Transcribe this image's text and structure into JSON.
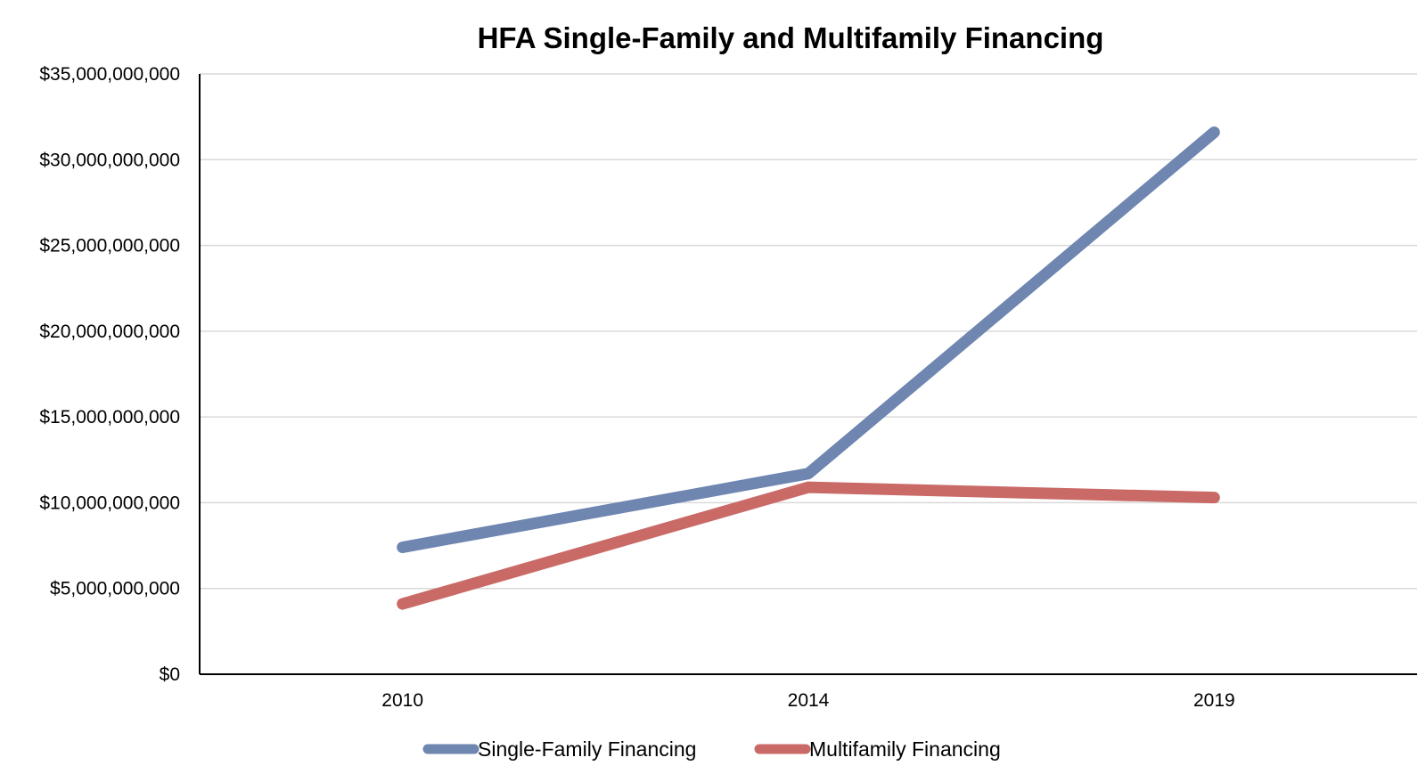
{
  "chart_data": {
    "type": "line",
    "title": "HFA Single-Family and Multifamily Financing",
    "xlabel": "",
    "ylabel": "",
    "categories": [
      "2010",
      "2014",
      "2019"
    ],
    "ylim": [
      0,
      35000000000
    ],
    "y_ticks": [
      {
        "value": 0,
        "label": "$0"
      },
      {
        "value": 5000000000,
        "label": "$5,000,000,000"
      },
      {
        "value": 10000000000,
        "label": "$10,000,000,000"
      },
      {
        "value": 15000000000,
        "label": "$15,000,000,000"
      },
      {
        "value": 20000000000,
        "label": "$20,000,000,000"
      },
      {
        "value": 25000000000,
        "label": "$25,000,000,000"
      },
      {
        "value": 30000000000,
        "label": "$30,000,000,000"
      },
      {
        "value": 35000000000,
        "label": "$35,000,000,000"
      }
    ],
    "grid": true,
    "legend_position": "bottom",
    "series": [
      {
        "name": "Single-Family Financing",
        "color": "#6e86b0",
        "values": [
          7400000000,
          11700000000,
          31600000000
        ]
      },
      {
        "name": "Multifamily Financing",
        "color": "#c96a67",
        "values": [
          4100000000,
          10900000000,
          10300000000
        ]
      }
    ]
  }
}
